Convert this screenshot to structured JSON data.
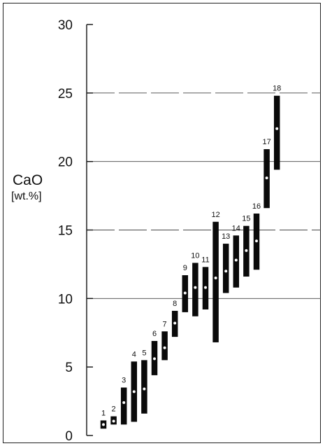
{
  "chart_data": {
    "type": "range",
    "ylabel": "CaO",
    "yunit": "[wt.%]",
    "ylim": [
      0,
      30
    ],
    "yticks": [
      0,
      5,
      10,
      15,
      20,
      25,
      30
    ],
    "gridlines": [
      10,
      15,
      20,
      25
    ],
    "bars": [
      {
        "label": "1",
        "min": 0.5,
        "max": 1.1,
        "mean": 0.8
      },
      {
        "label": "2",
        "min": 0.8,
        "max": 1.4,
        "mean": 1.05
      },
      {
        "label": "3",
        "min": 0.8,
        "max": 3.5,
        "mean": 2.4
      },
      {
        "label": "4",
        "min": 1.0,
        "max": 5.4,
        "mean": 3.2
      },
      {
        "label": "5",
        "min": 1.6,
        "max": 5.5,
        "mean": 3.4
      },
      {
        "label": "6",
        "min": 4.4,
        "max": 6.9,
        "mean": 5.6
      },
      {
        "label": "7",
        "min": 5.5,
        "max": 7.6,
        "mean": 6.4
      },
      {
        "label": "8",
        "min": 7.2,
        "max": 9.1,
        "mean": 8.2
      },
      {
        "label": "9",
        "min": 9.0,
        "max": 11.7,
        "mean": 10.4
      },
      {
        "label": "10",
        "min": 8.7,
        "max": 12.6,
        "mean": 10.8
      },
      {
        "label": "11",
        "min": 9.2,
        "max": 12.3,
        "mean": 10.8
      },
      {
        "label": "12",
        "min": 6.8,
        "max": 15.6,
        "mean": 11.5
      },
      {
        "label": "13",
        "min": 10.4,
        "max": 14.0,
        "mean": 12.0
      },
      {
        "label": "14",
        "min": 10.8,
        "max": 14.6,
        "mean": 12.8
      },
      {
        "label": "15",
        "min": 11.6,
        "max": 15.3,
        "mean": 13.5
      },
      {
        "label": "16",
        "min": 12.1,
        "max": 16.2,
        "mean": 14.2
      },
      {
        "label": "17",
        "min": 16.6,
        "max": 20.9,
        "mean": 18.8
      },
      {
        "label": "18",
        "min": 19.4,
        "max": 24.8,
        "mean": 22.4
      }
    ]
  }
}
